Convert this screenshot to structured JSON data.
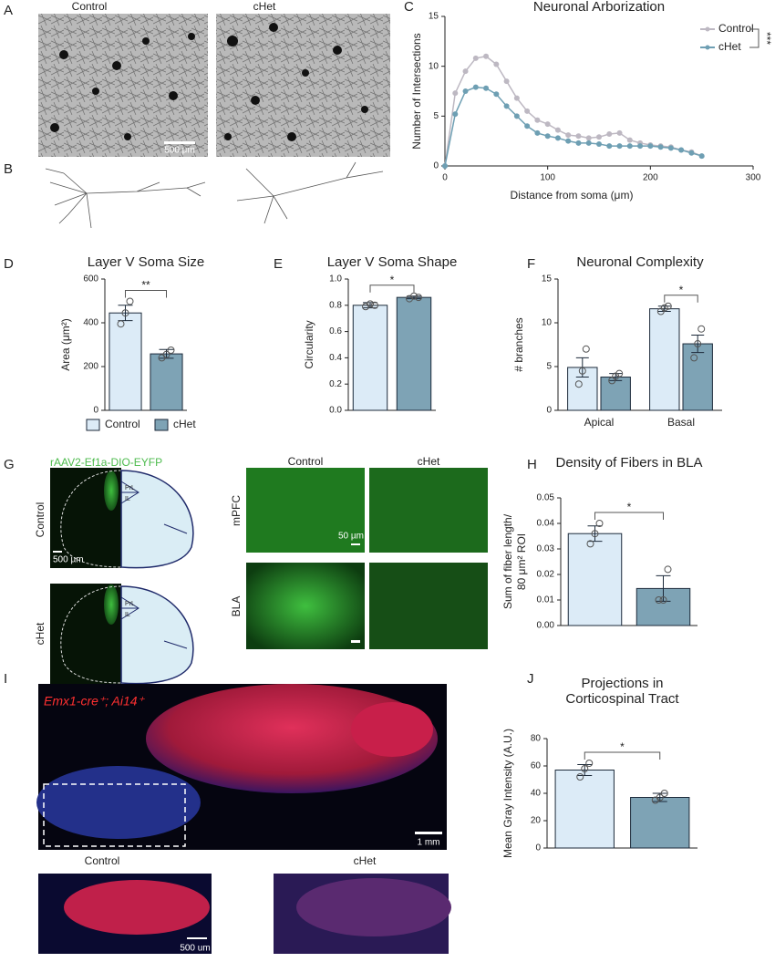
{
  "figure": {
    "panel_labels": [
      "A",
      "B",
      "C",
      "D",
      "E",
      "F",
      "G",
      "H",
      "I",
      "J"
    ]
  },
  "images": {
    "A": {
      "columns": [
        "Control",
        "cHet"
      ],
      "scale": "500 µm"
    },
    "G": {
      "vector": "rAAV2-Ef1a-DIO-EYFP",
      "rows": [
        "Control",
        "cHet"
      ],
      "regions": [
        "PrL",
        "IL"
      ],
      "scale": "500 µm",
      "columns": [
        "Control",
        "cHet"
      ],
      "areas": [
        "mPFC",
        "BLA"
      ],
      "scale_zoom": "50 µm"
    },
    "I": {
      "genotype": "Emx1-cre⁺; Ai14⁺",
      "scale": "1 mm",
      "columns": [
        "Control",
        "cHet"
      ],
      "scale_zoom": "500 um"
    }
  },
  "chart_data": [
    {
      "type": "line",
      "title": "Neuronal Arborization",
      "x_label": "Distance from soma (μm)",
      "y_label": "Number of Intersections",
      "x": [
        0,
        10,
        20,
        30,
        40,
        50,
        60,
        70,
        80,
        90,
        100,
        110,
        120,
        130,
        140,
        150,
        160,
        170,
        180,
        190,
        200,
        210,
        220,
        230,
        240,
        250
      ],
      "series": [
        {
          "name": "Control",
          "color": "#bdb8c2",
          "values": [
            0,
            7.3,
            9.5,
            10.8,
            11,
            10.2,
            8.5,
            6.8,
            5.5,
            4.6,
            4.2,
            3.6,
            3.1,
            3.0,
            2.8,
            2.9,
            3.2,
            3.3,
            2.6,
            2.3,
            2.1,
            2.0,
            1.9,
            1.6,
            1.4,
            1.0
          ]
        },
        {
          "name": "cHet",
          "color": "#6e9fb3",
          "values": [
            0,
            5.2,
            7.5,
            7.9,
            7.8,
            7.2,
            6.0,
            5.0,
            4.0,
            3.3,
            3.0,
            2.8,
            2.5,
            2.3,
            2.3,
            2.2,
            2.0,
            2.0,
            2.0,
            2.0,
            2.0,
            1.9,
            1.8,
            1.6,
            1.3,
            1.0
          ]
        }
      ],
      "xlim": [
        0,
        300
      ],
      "xticks": [
        0,
        100,
        200,
        300
      ],
      "ylim": [
        0,
        15
      ],
      "yticks": [
        0,
        5,
        10,
        15
      ],
      "significance": "***"
    },
    {
      "type": "bar",
      "title": "Layer V Soma Size",
      "y_label": "Area (μm²)",
      "legend": "bottom",
      "categories": [
        "Control",
        "cHet"
      ],
      "values": [
        445,
        258
      ],
      "errors": [
        35,
        20
      ],
      "points": [
        [
          395,
          445,
          498
        ],
        [
          240,
          255,
          275
        ]
      ],
      "colors": [
        "#dcebf7",
        "#7ea3b5"
      ],
      "ylim": [
        0,
        600
      ],
      "yticks": [
        0,
        200,
        400,
        600
      ],
      "significance": "**"
    },
    {
      "type": "bar",
      "title": "Layer V Soma Shape",
      "y_label": "Circularity",
      "values": [
        0.8,
        0.86
      ],
      "errors": [
        0.02,
        0.01
      ],
      "points": [
        [
          0.79,
          0.81,
          0.8
        ],
        [
          0.85,
          0.87,
          0.86
        ]
      ],
      "colors": [
        "#dcebf7",
        "#7ea3b5"
      ],
      "ylim": [
        0,
        1
      ],
      "yticks": [
        {
          "value": 0,
          "label": "0.0"
        },
        0.2,
        0.4,
        0.6,
        0.8,
        {
          "value": 1,
          "label": "1.0"
        }
      ],
      "significance": "*"
    },
    {
      "type": "grouped_bar",
      "title": "Neuronal Complexity",
      "y_label": "# branches",
      "categories": [
        "Apical",
        "Basal"
      ],
      "series": [
        {
          "name": "Control",
          "color": "#dcebf7",
          "values": [
            4.9,
            11.6
          ],
          "errors": [
            1.1,
            0.3
          ],
          "points": [
            [
              3,
              4.5,
              7
            ],
            [
              11.3,
              11.7,
              11.9
            ]
          ]
        },
        {
          "name": "cHet",
          "color": "#7ea3b5",
          "values": [
            3.8,
            7.6
          ],
          "errors": [
            0.4,
            1.0
          ],
          "points": [
            [
              3.4,
              3.9,
              4.2
            ],
            [
              6,
              7.6,
              9.3
            ]
          ]
        }
      ],
      "ylim": [
        0,
        15
      ],
      "yticks": [
        0,
        5,
        10,
        15
      ],
      "significance": [
        null,
        "*"
      ]
    },
    {
      "type": "bar",
      "title": "Density of Fibers in BLA",
      "y_label": [
        "Sum of fiber length/",
        "80 μm² ROI"
      ],
      "values": [
        0.036,
        0.0145
      ],
      "errors": [
        0.003,
        0.005
      ],
      "points": [
        [
          0.032,
          0.036,
          0.04
        ],
        [
          0.01,
          0.01,
          0.022
        ]
      ],
      "colors": [
        "#dcebf7",
        "#7ea3b5"
      ],
      "ylim": [
        0,
        0.05
      ],
      "yticks": [
        {
          "value": 0,
          "label": "0.00"
        },
        0.01,
        0.02,
        0.03,
        0.04,
        0.05
      ],
      "significance": "*"
    },
    {
      "type": "bar",
      "title": [
        "Projections in",
        "Corticospinal Tract"
      ],
      "y_label": "Mean Gray Intensity (A.U.)",
      "values": [
        57,
        37
      ],
      "errors": [
        4,
        3
      ],
      "points": [
        [
          52,
          58,
          62
        ],
        [
          35,
          37,
          40
        ]
      ],
      "colors": [
        "#dcebf7",
        "#7ea3b5"
      ],
      "ylim": [
        0,
        80
      ],
      "yticks": [
        0,
        20,
        40,
        60,
        80
      ],
      "significance": "*"
    }
  ]
}
